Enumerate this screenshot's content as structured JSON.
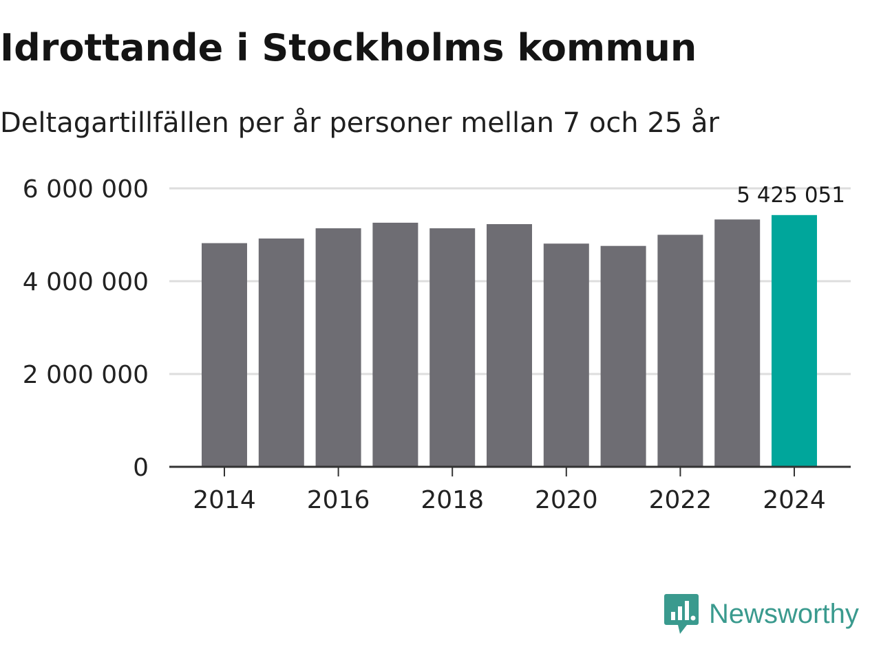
{
  "chart_data": {
    "type": "bar",
    "title": "Idrottande i Stockholms kommun",
    "subtitle": "Deltagartillfällen per år personer mellan 7 och 25 år",
    "categories": [
      "2014",
      "2015",
      "2016",
      "2017",
      "2018",
      "2019",
      "2020",
      "2021",
      "2022",
      "2023",
      "2024"
    ],
    "values": [
      4820000,
      4920000,
      5140000,
      5260000,
      5140000,
      5230000,
      4810000,
      4760000,
      5000000,
      5330000,
      5425051
    ],
    "highlight_index": 10,
    "highlight_label": "5 425 051",
    "yticks": [
      0,
      2000000,
      4000000,
      6000000
    ],
    "ytick_labels": [
      "0",
      "2 000 000",
      "4 000 000",
      "6 000 000"
    ],
    "xtick_labels": [
      "2014",
      "2016",
      "2018",
      "2020",
      "2022",
      "2024"
    ],
    "ylim": [
      0,
      6000000
    ],
    "xlabel": "",
    "ylabel": "",
    "colors": {
      "bar": "#6e6d73",
      "highlight": "#00a69b",
      "grid": "#dddddd",
      "axis": "#333333",
      "text": "#222222"
    }
  },
  "brand": {
    "name": "Newsworthy",
    "icon": "newsworthy-logo-icon",
    "color": "#3a9a8e"
  }
}
